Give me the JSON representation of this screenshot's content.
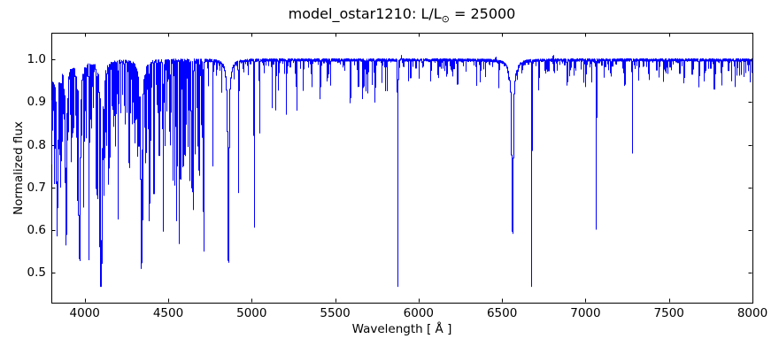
{
  "chart_data": {
    "type": "line",
    "title": "model_ostar1210: L/L⊙ = 25000",
    "title_parts": {
      "prefix": "model_ostar1210: L/L",
      "sub": "⊙",
      "suffix": " = 25000"
    },
    "xlabel": "Wavelength [ Å ]",
    "ylabel": "Normalized flux",
    "xlim": [
      3800,
      8000
    ],
    "ylim": [
      0.429,
      1.063
    ],
    "xticks": [
      4000,
      4500,
      5000,
      5500,
      6000,
      6500,
      7000,
      7500,
      8000
    ],
    "xtick_labels": [
      "4000",
      "4500",
      "5000",
      "5500",
      "6000",
      "6500",
      "7000",
      "7500",
      "8000"
    ],
    "yticks": [
      0.5,
      0.6,
      0.7,
      0.8,
      0.9,
      1.0
    ],
    "ytick_labels": [
      "0.5",
      "0.6",
      "0.7",
      "0.8",
      "0.9",
      "1.0"
    ],
    "grid": false,
    "legend": null,
    "line_color": "#0000ff",
    "frame_color": "#000000",
    "background_color": "#ffffff",
    "continuum": 1.0,
    "absorption_lines": [
      [
        3798,
        0.72,
        4.0,
        1
      ],
      [
        3806,
        0.9,
        1.2
      ],
      [
        3812,
        0.93,
        1.2
      ],
      [
        3820,
        0.76,
        1.8
      ],
      [
        3829,
        0.85,
        1.3
      ],
      [
        3835,
        0.6,
        4.5,
        1
      ],
      [
        3842,
        0.88,
        1.2
      ],
      [
        3851,
        0.82,
        1.3
      ],
      [
        3856,
        0.74,
        1.4
      ],
      [
        3863,
        0.8,
        1.3
      ],
      [
        3872,
        0.92,
        1.2
      ],
      [
        3883,
        0.86,
        1.2
      ],
      [
        3889,
        0.575,
        4.5,
        1
      ],
      [
        3900,
        0.88,
        1.3
      ],
      [
        3913,
        0.9,
        1.2
      ],
      [
        3920,
        0.78,
        1.4
      ],
      [
        3927,
        0.88,
        1.3
      ],
      [
        3933,
        0.86,
        1.2
      ],
      [
        3945,
        0.9,
        1.2
      ],
      [
        3955,
        0.72,
        1.4
      ],
      [
        3965,
        0.8,
        1.4
      ],
      [
        3970,
        0.545,
        5.0,
        1
      ],
      [
        3983,
        0.88,
        1.2
      ],
      [
        3995,
        0.68,
        1.5
      ],
      [
        4004,
        0.9,
        1.2
      ],
      [
        4009,
        0.83,
        1.6
      ],
      [
        4026,
        0.575,
        2.0
      ],
      [
        4035,
        0.88,
        1.3
      ],
      [
        4042,
        0.85,
        1.3
      ],
      [
        4053,
        0.9,
        1.2
      ],
      [
        4070,
        0.72,
        1.4
      ],
      [
        4076,
        0.7,
        1.4
      ],
      [
        4089,
        0.62,
        1.6
      ],
      [
        4097,
        0.7,
        1.6
      ],
      [
        4102,
        0.52,
        5.0,
        1
      ],
      [
        4110,
        0.88,
        1.2
      ],
      [
        4116,
        0.74,
        1.5
      ],
      [
        4121,
        0.81,
        1.6
      ],
      [
        4129,
        0.85,
        1.3
      ],
      [
        4132,
        0.82,
        1.3
      ],
      [
        4144,
        0.72,
        1.8
      ],
      [
        4153,
        0.78,
        1.4
      ],
      [
        4163,
        0.9,
        1.2
      ],
      [
        4169,
        0.9,
        1.4
      ],
      [
        4176,
        0.85,
        1.2
      ],
      [
        4186,
        0.8,
        1.3
      ],
      [
        4190,
        0.88,
        1.2
      ],
      [
        4200,
        0.63,
        1.8
      ],
      [
        4216,
        0.88,
        1.2
      ],
      [
        4227,
        0.92,
        1.2
      ],
      [
        4237,
        0.9,
        1.2
      ],
      [
        4242,
        0.85,
        1.3
      ],
      [
        4254,
        0.88,
        1.2
      ],
      [
        4267,
        0.75,
        1.4
      ],
      [
        4276,
        0.88,
        1.2
      ],
      [
        4284,
        0.9,
        1.2
      ],
      [
        4294,
        0.86,
        1.2
      ],
      [
        4303,
        0.82,
        1.3
      ],
      [
        4310,
        0.88,
        1.2
      ],
      [
        4317,
        0.8,
        1.3
      ],
      [
        4325,
        0.85,
        1.2
      ],
      [
        4340,
        0.51,
        5.0,
        1
      ],
      [
        4349,
        0.72,
        1.4
      ],
      [
        4359,
        0.88,
        1.2
      ],
      [
        4367,
        0.78,
        1.3
      ],
      [
        4380,
        0.85,
        1.2
      ],
      [
        4388,
        0.63,
        1.8
      ],
      [
        4395,
        0.82,
        1.2
      ],
      [
        4415,
        0.72,
        1.4
      ],
      [
        4417,
        0.75,
        1.3
      ],
      [
        4432,
        0.9,
        1.2
      ],
      [
        4438,
        0.88,
        1.2
      ],
      [
        4447,
        0.78,
        1.3
      ],
      [
        4455,
        0.88,
        1.2
      ],
      [
        4465,
        0.85,
        1.2
      ],
      [
        4471,
        0.6,
        2.0
      ],
      [
        4481,
        0.8,
        1.3
      ],
      [
        4491,
        0.88,
        1.2
      ],
      [
        4511,
        0.82,
        1.3
      ],
      [
        4515,
        0.8,
        1.3
      ],
      [
        4530,
        0.78,
        1.3
      ],
      [
        4541,
        0.71,
        1.8
      ],
      [
        4552,
        0.62,
        1.6
      ],
      [
        4568,
        0.65,
        1.5
      ],
      [
        4575,
        0.72,
        1.4
      ],
      [
        4590,
        0.75,
        1.4
      ],
      [
        4596,
        0.78,
        1.3
      ],
      [
        4604,
        0.8,
        1.3
      ],
      [
        4610,
        0.85,
        1.2
      ],
      [
        4621,
        0.8,
        1.3
      ],
      [
        4630,
        0.72,
        1.4
      ],
      [
        4639,
        0.75,
        1.3
      ],
      [
        4642,
        0.7,
        1.4
      ],
      [
        4649,
        0.65,
        1.5
      ],
      [
        4662,
        0.78,
        1.3
      ],
      [
        4676,
        0.8,
        1.3
      ],
      [
        4686,
        0.73,
        1.8
      ],
      [
        4699,
        0.85,
        1.2
      ],
      [
        4705,
        0.82,
        1.2
      ],
      [
        4713,
        0.55,
        1.8
      ],
      [
        4768,
        0.755,
        1.4
      ],
      [
        4821,
        0.93,
        1.2
      ],
      [
        4861,
        0.525,
        4.5,
        1
      ],
      [
        4922,
        0.69,
        1.8
      ],
      [
        5016,
        0.615,
        1.8
      ],
      [
        5048,
        0.83,
        1.6
      ],
      [
        5122,
        0.92,
        1.2
      ],
      [
        5145,
        0.88,
        1.3
      ],
      [
        5160,
        0.93,
        1.2
      ],
      [
        5208,
        0.87,
        1.3
      ],
      [
        5270,
        0.88,
        1.3
      ],
      [
        5310,
        0.93,
        1.2
      ],
      [
        5360,
        0.94,
        1.2
      ],
      [
        5411,
        0.91,
        1.8
      ],
      [
        5454,
        0.95,
        1.2
      ],
      [
        5473,
        0.94,
        1.2
      ],
      [
        5592,
        0.9,
        1.4
      ],
      [
        5640,
        0.94,
        1.2
      ],
      [
        5666,
        0.92,
        1.3
      ],
      [
        5676,
        0.94,
        1.2
      ],
      [
        5686,
        0.93,
        1.2
      ],
      [
        5696,
        0.92,
        1.3
      ],
      [
        5722,
        0.94,
        1.2
      ],
      [
        5740,
        0.9,
        1.4
      ],
      [
        5780,
        0.95,
        1.2
      ],
      [
        5801,
        0.93,
        1.4
      ],
      [
        5812,
        0.94,
        1.3
      ],
      [
        5876,
        0.48,
        1.8
      ],
      [
        5940,
        0.95,
        1.2
      ],
      [
        5953,
        0.96,
        1.2
      ],
      [
        6004,
        0.96,
        1.2
      ],
      [
        6074,
        0.95,
        1.2
      ],
      [
        6118,
        0.96,
        1.2
      ],
      [
        6170,
        0.96,
        1.2
      ],
      [
        6203,
        0.96,
        1.2
      ],
      [
        6234,
        0.945,
        1.3
      ],
      [
        6347,
        0.94,
        1.3
      ],
      [
        6371,
        0.95,
        1.2
      ],
      [
        6402,
        0.96,
        1.2
      ],
      [
        6482,
        0.94,
        1.3
      ],
      [
        6563,
        0.6,
        6.0,
        1
      ],
      [
        6678,
        0.48,
        1.6
      ],
      [
        6721,
        0.93,
        1.3
      ],
      [
        6891,
        0.94,
        1.4
      ],
      [
        6906,
        0.96,
        1.2
      ],
      [
        6990,
        0.95,
        1.2
      ],
      [
        7002,
        0.94,
        1.3
      ],
      [
        7037,
        0.95,
        1.2
      ],
      [
        7065,
        0.6,
        1.6
      ],
      [
        7113,
        0.96,
        1.2
      ],
      [
        7155,
        0.96,
        1.2
      ],
      [
        7236,
        0.94,
        1.3
      ],
      [
        7281,
        0.78,
        1.5
      ],
      [
        7320,
        0.95,
        1.2
      ],
      [
        7442,
        0.96,
        1.2
      ],
      [
        7468,
        0.95,
        1.2
      ],
      [
        7590,
        0.95,
        1.3
      ],
      [
        7680,
        0.94,
        1.4
      ],
      [
        7712,
        0.95,
        1.2
      ],
      [
        7772,
        0.93,
        1.4
      ],
      [
        7816,
        0.94,
        1.3
      ],
      [
        7876,
        0.96,
        1.2
      ],
      [
        7896,
        0.94,
        1.3
      ],
      [
        7950,
        0.96,
        1.2
      ],
      [
        7986,
        0.95,
        1.2
      ]
    ],
    "emission_lines": [
      [
        5897,
        1.01,
        1.5
      ],
      [
        6464,
        1.02,
        1.5
      ],
      [
        6808,
        1.012,
        1.5
      ]
    ],
    "texture": {
      "noise": 0.003,
      "micro_spacing": 12,
      "micro_depth_blue": 0.1,
      "micro_depth_red": 0.035,
      "blue_red_boundary": 4750
    }
  }
}
